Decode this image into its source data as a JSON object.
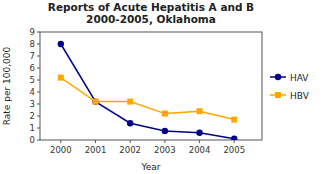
{
  "chart_data": {
    "type": "line",
    "title": "Reports of Acute Hepatitis A and B\n2000-2005, Oklahoma",
    "x_label": "Year",
    "y_label": "Rate per 100,000",
    "x": [
      2000,
      2001,
      2002,
      2003,
      2004,
      2005
    ],
    "series": [
      {
        "name": "HAV",
        "color": "#00008B",
        "marker": "circle",
        "values": [
          8.0,
          3.2,
          1.4,
          0.75,
          0.6,
          0.1
        ]
      },
      {
        "name": "HBV",
        "color": "#FFA500",
        "marker": "square",
        "values": [
          5.2,
          3.2,
          3.2,
          2.2,
          2.4,
          1.7
        ]
      }
    ],
    "xlim": [
      1999.4,
      2005.8
    ],
    "xticks": [
      2000,
      2001,
      2002,
      2003,
      2004,
      2005
    ],
    "ylim": [
      0,
      9
    ],
    "yticks": [
      0,
      1,
      2,
      3,
      4,
      5,
      6,
      7,
      8,
      9
    ],
    "grid": false,
    "legend": "right"
  }
}
